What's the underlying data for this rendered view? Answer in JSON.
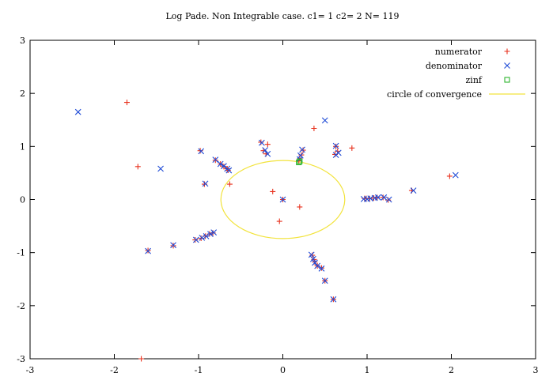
{
  "chart_data": {
    "type": "scatter",
    "title": "Log Pade. Non Integrable case. c1= 1 c2= 2 N= 119",
    "xlabel": "",
    "ylabel": "",
    "xlim": [
      -3,
      3
    ],
    "ylim": [
      -3,
      3
    ],
    "x_ticks": [
      "-3",
      "-2",
      "-1",
      "0",
      "1",
      "2",
      "3"
    ],
    "y_ticks": [
      "-3",
      "-2",
      "-1",
      "0",
      "1",
      "2",
      "3"
    ],
    "grid": false,
    "legend_position": "top-right",
    "series": [
      {
        "name": "numerator",
        "marker": "plus",
        "color": "#e8321e",
        "points": [
          [
            -1.85,
            1.83
          ],
          [
            -1.72,
            0.62
          ],
          [
            -1.68,
            -3.0
          ],
          [
            -1.6,
            -0.96
          ],
          [
            -0.98,
            0.92
          ],
          [
            -1.3,
            -0.87
          ],
          [
            -0.93,
            0.29
          ],
          [
            -0.63,
            0.29
          ],
          [
            -0.65,
            0.55
          ],
          [
            -0.66,
            0.58
          ],
          [
            -0.7,
            0.62
          ],
          [
            -0.74,
            0.67
          ],
          [
            -0.8,
            0.74
          ],
          [
            -0.83,
            -0.63
          ],
          [
            -0.87,
            -0.65
          ],
          [
            -0.92,
            -0.69
          ],
          [
            -0.97,
            -0.73
          ],
          [
            -1.04,
            -0.76
          ],
          [
            -0.26,
            1.08
          ],
          [
            -0.18,
            1.04
          ],
          [
            -0.2,
            0.86
          ],
          [
            -0.23,
            0.92
          ],
          [
            -0.12,
            0.15
          ],
          [
            0.0,
            0.0
          ],
          [
            0.2,
            -0.14
          ],
          [
            -0.04,
            -0.41
          ],
          [
            0.19,
            0.73
          ],
          [
            0.2,
            0.77
          ],
          [
            0.22,
            0.84
          ],
          [
            0.24,
            0.93
          ],
          [
            0.37,
            1.34
          ],
          [
            0.65,
            0.91
          ],
          [
            0.62,
            0.85
          ],
          [
            0.63,
            1.0
          ],
          [
            0.82,
            0.97
          ],
          [
            0.35,
            -1.05
          ],
          [
            0.37,
            -1.13
          ],
          [
            0.38,
            -1.18
          ],
          [
            0.41,
            -1.25
          ],
          [
            0.46,
            -1.29
          ],
          [
            0.5,
            -1.53
          ],
          [
            0.6,
            -1.88
          ],
          [
            0.97,
            0.02
          ],
          [
            0.99,
            0.02
          ],
          [
            1.03,
            0.02
          ],
          [
            1.08,
            0.03
          ],
          [
            1.12,
            0.04
          ],
          [
            1.19,
            0.04
          ],
          [
            1.25,
            -0.01
          ],
          [
            1.53,
            0.17
          ],
          [
            1.98,
            0.44
          ]
        ]
      },
      {
        "name": "denominator",
        "marker": "cross",
        "color": "#1f4bd6",
        "points": [
          [
            -2.43,
            1.65
          ],
          [
            -1.45,
            0.58
          ],
          [
            -1.6,
            -0.97
          ],
          [
            -1.3,
            -0.86
          ],
          [
            -0.97,
            0.91
          ],
          [
            -0.92,
            0.3
          ],
          [
            -0.64,
            0.55
          ],
          [
            -0.66,
            0.58
          ],
          [
            -0.7,
            0.63
          ],
          [
            -0.74,
            0.67
          ],
          [
            -0.8,
            0.75
          ],
          [
            -0.82,
            -0.62
          ],
          [
            -0.86,
            -0.65
          ],
          [
            -0.91,
            -0.69
          ],
          [
            -0.96,
            -0.72
          ],
          [
            -1.03,
            -0.76
          ],
          [
            -0.25,
            1.07
          ],
          [
            -0.21,
            0.93
          ],
          [
            -0.18,
            0.86
          ],
          [
            0.0,
            0.0
          ],
          [
            0.2,
            0.76
          ],
          [
            0.21,
            0.83
          ],
          [
            0.23,
            0.94
          ],
          [
            0.5,
            1.49
          ],
          [
            0.63,
            1.01
          ],
          [
            0.63,
            0.84
          ],
          [
            0.66,
            0.88
          ],
          [
            0.34,
            -1.04
          ],
          [
            0.36,
            -1.12
          ],
          [
            0.38,
            -1.19
          ],
          [
            0.41,
            -1.25
          ],
          [
            0.46,
            -1.3
          ],
          [
            0.5,
            -1.53
          ],
          [
            0.6,
            -1.88
          ],
          [
            0.96,
            0.01
          ],
          [
            1.0,
            0.01
          ],
          [
            1.04,
            0.02
          ],
          [
            1.09,
            0.03
          ],
          [
            1.13,
            0.04
          ],
          [
            1.2,
            0.04
          ],
          [
            1.26,
            0.0
          ],
          [
            1.55,
            0.17
          ],
          [
            2.05,
            0.46
          ]
        ]
      },
      {
        "name": "zinf",
        "marker": "square",
        "color": "#2db52d",
        "points": [
          [
            0.19,
            0.7
          ],
          [
            0.2,
            0.72
          ]
        ]
      },
      {
        "name": "circle of convergence",
        "marker": "line",
        "color": "#f2e33c",
        "shape": "circle",
        "center": [
          0,
          0
        ],
        "radius": 0.735
      }
    ]
  }
}
